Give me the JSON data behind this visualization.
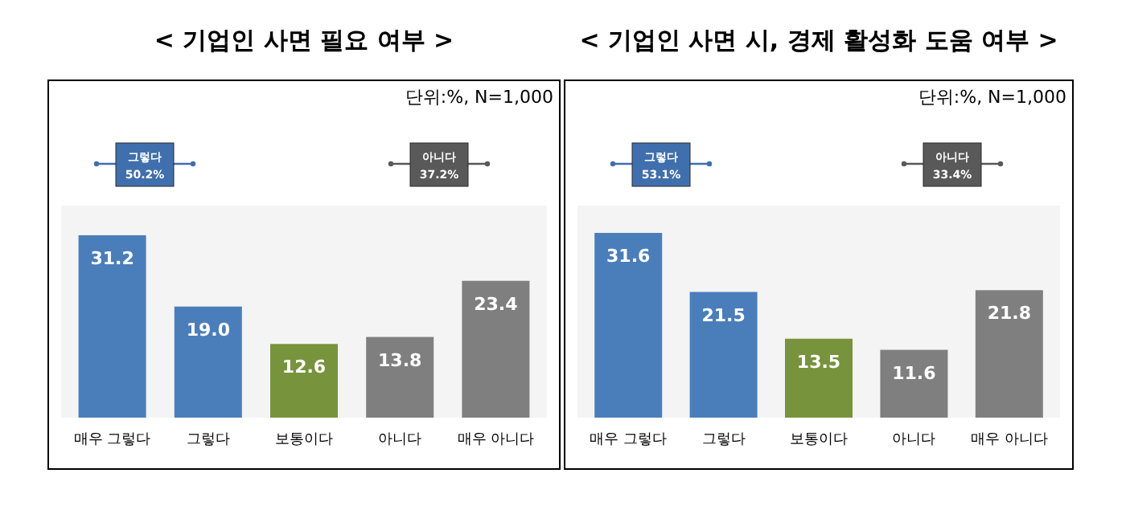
{
  "chart_data": [
    {
      "type": "bar",
      "title": "< 기업인 사면 필요 여부 >",
      "categories": [
        "매우 그렇다",
        "그렇다",
        "보통이다",
        "아니다",
        "매우 아니다"
      ],
      "values": [
        31.2,
        19.0,
        12.6,
        13.8,
        23.4
      ],
      "value_labels": [
        "31.2",
        "19.0",
        "12.6",
        "13.8",
        "23.4"
      ],
      "colors": [
        "#4a7ebb",
        "#4a7ebb",
        "#77933c",
        "#7f7f7f",
        "#7f7f7f"
      ],
      "data_labels": true,
      "annotations": [
        "단위:%, N=1,000",
        "그렇다 50.2%",
        "아니다 37.2%"
      ]
    },
    {
      "type": "bar",
      "title": "< 기업인 사면 시, 경제 활성화 도움 여부 >",
      "categories": [
        "매우 그렇다",
        "그렇다",
        "보통이다",
        "아니다",
        "매우 아니다"
      ],
      "values": [
        31.6,
        21.5,
        13.5,
        11.6,
        21.8
      ],
      "value_labels": [
        "31.6",
        "21.5",
        "13.5",
        "11.6",
        "21.8"
      ],
      "colors": [
        "#4a7ebb",
        "#4a7ebb",
        "#77933c",
        "#7f7f7f",
        "#7f7f7f"
      ],
      "data_labels": true,
      "annotations": [
        "단위:%, N=1,000",
        "그렇다 53.1%",
        "아니다 33.4%"
      ]
    }
  ]
}
